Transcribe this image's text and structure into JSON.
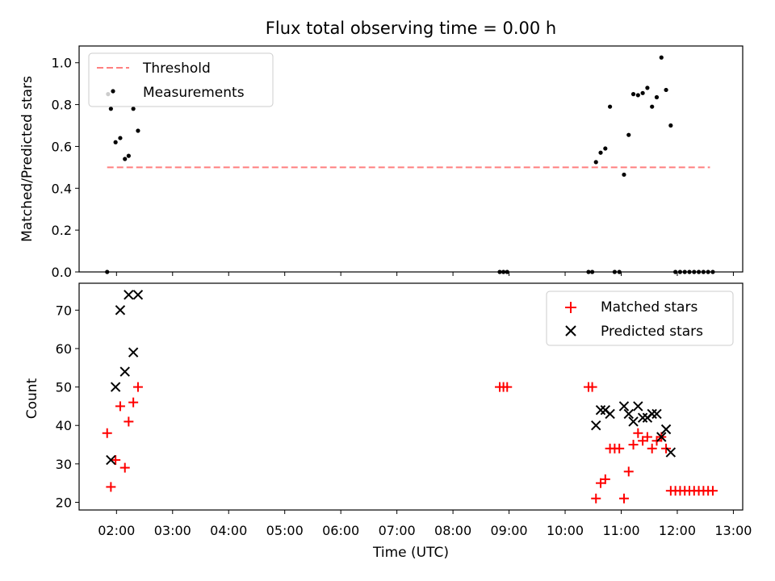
{
  "chart_data": [
    {
      "type": "scatter",
      "title": "Flux total observing time = 0.00 h",
      "xlabel": "",
      "ylabel": "Matched/Predicted stars",
      "xlim": [
        "01:20",
        "13:10"
      ],
      "ylim": [
        0,
        1.08
      ],
      "yticks": [
        0.0,
        0.2,
        0.4,
        0.6,
        0.8,
        1.0
      ],
      "ytick_labels": [
        "0.0",
        "0.2",
        "0.4",
        "0.6",
        "0.8",
        "1.0"
      ],
      "xticks": [
        "02:00",
        "03:00",
        "04:00",
        "05:00",
        "06:00",
        "07:00",
        "08:00",
        "09:00",
        "10:00",
        "11:00",
        "12:00",
        "13:00"
      ],
      "legend_position": "top-left",
      "series": [
        {
          "name": "Threshold",
          "kind": "line",
          "style": "dashed",
          "color": "#ff7f7f",
          "points": [
            {
              "x": "01:50",
              "y": 0.5
            },
            {
              "x": "12:35",
              "y": 0.5
            }
          ]
        },
        {
          "name": "Measurements",
          "kind": "scatter",
          "marker": "dot",
          "color": "#000000",
          "points": [
            {
              "x": "01:50",
              "y": 0.0
            },
            {
              "x": "01:51",
              "y": 0.85
            },
            {
              "x": "01:54",
              "y": 0.78
            },
            {
              "x": "01:59",
              "y": 0.62
            },
            {
              "x": "02:04",
              "y": 0.64
            },
            {
              "x": "02:09",
              "y": 0.54
            },
            {
              "x": "02:13",
              "y": 0.555
            },
            {
              "x": "02:18",
              "y": 0.78
            },
            {
              "x": "02:23",
              "y": 0.675
            },
            {
              "x": "08:50",
              "y": 0.0
            },
            {
              "x": "08:54",
              "y": 0.0
            },
            {
              "x": "08:58",
              "y": 0.0
            },
            {
              "x": "10:25",
              "y": 0.0
            },
            {
              "x": "10:29",
              "y": 0.0
            },
            {
              "x": "10:33",
              "y": 0.525
            },
            {
              "x": "10:38",
              "y": 0.57
            },
            {
              "x": "10:43",
              "y": 0.59
            },
            {
              "x": "10:48",
              "y": 0.79
            },
            {
              "x": "10:53",
              "y": 0.0
            },
            {
              "x": "10:58",
              "y": 0.0
            },
            {
              "x": "11:03",
              "y": 0.465
            },
            {
              "x": "11:08",
              "y": 0.655
            },
            {
              "x": "11:13",
              "y": 0.85
            },
            {
              "x": "11:18",
              "y": 0.845
            },
            {
              "x": "11:23",
              "y": 0.855
            },
            {
              "x": "11:28",
              "y": 0.88
            },
            {
              "x": "11:33",
              "y": 0.79
            },
            {
              "x": "11:38",
              "y": 0.835
            },
            {
              "x": "11:43",
              "y": 1.025
            },
            {
              "x": "11:48",
              "y": 0.87
            },
            {
              "x": "11:53",
              "y": 0.7
            },
            {
              "x": "11:58",
              "y": 0.0
            },
            {
              "x": "12:03",
              "y": 0.0
            },
            {
              "x": "12:08",
              "y": 0.0
            },
            {
              "x": "12:13",
              "y": 0.0
            },
            {
              "x": "12:18",
              "y": 0.0
            },
            {
              "x": "12:23",
              "y": 0.0
            },
            {
              "x": "12:28",
              "y": 0.0
            },
            {
              "x": "12:33",
              "y": 0.0
            },
            {
              "x": "12:38",
              "y": 0.0
            }
          ]
        }
      ]
    },
    {
      "type": "scatter",
      "title": "",
      "xlabel": "Time (UTC)",
      "ylabel": "Count",
      "xlim": [
        "01:20",
        "13:10"
      ],
      "ylim": [
        18,
        77
      ],
      "yticks": [
        20,
        30,
        40,
        50,
        60,
        70
      ],
      "ytick_labels": [
        "20",
        "30",
        "40",
        "50",
        "60",
        "70"
      ],
      "xticks": [
        "02:00",
        "03:00",
        "04:00",
        "05:00",
        "06:00",
        "07:00",
        "08:00",
        "09:00",
        "10:00",
        "11:00",
        "12:00",
        "13:00"
      ],
      "xtick_labels": [
        "02:00",
        "03:00",
        "04:00",
        "05:00",
        "06:00",
        "07:00",
        "08:00",
        "09:00",
        "10:00",
        "11:00",
        "12:00",
        "13:00"
      ],
      "legend_position": "top-right",
      "series": [
        {
          "name": "Matched stars",
          "kind": "scatter",
          "marker": "plus",
          "color": "#ff0000",
          "points": [
            {
              "x": "01:50",
              "y": 38
            },
            {
              "x": "01:54",
              "y": 24
            },
            {
              "x": "01:59",
              "y": 31
            },
            {
              "x": "02:04",
              "y": 45
            },
            {
              "x": "02:09",
              "y": 29
            },
            {
              "x": "02:13",
              "y": 41
            },
            {
              "x": "02:18",
              "y": 46
            },
            {
              "x": "02:23",
              "y": 50
            },
            {
              "x": "08:50",
              "y": 50
            },
            {
              "x": "08:54",
              "y": 50
            },
            {
              "x": "08:58",
              "y": 50
            },
            {
              "x": "10:25",
              "y": 50
            },
            {
              "x": "10:29",
              "y": 50
            },
            {
              "x": "10:33",
              "y": 21
            },
            {
              "x": "10:38",
              "y": 25
            },
            {
              "x": "10:43",
              "y": 26
            },
            {
              "x": "10:48",
              "y": 34
            },
            {
              "x": "10:53",
              "y": 34
            },
            {
              "x": "10:58",
              "y": 34
            },
            {
              "x": "11:03",
              "y": 21
            },
            {
              "x": "11:08",
              "y": 28
            },
            {
              "x": "11:13",
              "y": 35
            },
            {
              "x": "11:18",
              "y": 38
            },
            {
              "x": "11:23",
              "y": 36
            },
            {
              "x": "11:28",
              "y": 37
            },
            {
              "x": "11:33",
              "y": 34
            },
            {
              "x": "11:38",
              "y": 36
            },
            {
              "x": "11:43",
              "y": 37
            },
            {
              "x": "11:48",
              "y": 34
            },
            {
              "x": "11:53",
              "y": 23
            },
            {
              "x": "11:58",
              "y": 23
            },
            {
              "x": "12:03",
              "y": 23
            },
            {
              "x": "12:08",
              "y": 23
            },
            {
              "x": "12:13",
              "y": 23
            },
            {
              "x": "12:18",
              "y": 23
            },
            {
              "x": "12:23",
              "y": 23
            },
            {
              "x": "12:28",
              "y": 23
            },
            {
              "x": "12:33",
              "y": 23
            },
            {
              "x": "12:38",
              "y": 23
            }
          ]
        },
        {
          "name": "Predicted stars",
          "kind": "scatter",
          "marker": "x",
          "color": "#000000",
          "points": [
            {
              "x": "01:54",
              "y": 31
            },
            {
              "x": "01:59",
              "y": 50
            },
            {
              "x": "02:04",
              "y": 70
            },
            {
              "x": "02:09",
              "y": 54
            },
            {
              "x": "02:13",
              "y": 74
            },
            {
              "x": "02:18",
              "y": 59
            },
            {
              "x": "02:23",
              "y": 74
            },
            {
              "x": "10:33",
              "y": 40
            },
            {
              "x": "10:38",
              "y": 44
            },
            {
              "x": "10:43",
              "y": 44
            },
            {
              "x": "10:48",
              "y": 43
            },
            {
              "x": "11:03",
              "y": 45
            },
            {
              "x": "11:08",
              "y": 43
            },
            {
              "x": "11:13",
              "y": 41
            },
            {
              "x": "11:18",
              "y": 45
            },
            {
              "x": "11:23",
              "y": 42
            },
            {
              "x": "11:28",
              "y": 42
            },
            {
              "x": "11:33",
              "y": 43
            },
            {
              "x": "11:38",
              "y": 43
            },
            {
              "x": "11:43",
              "y": 37
            },
            {
              "x": "11:48",
              "y": 39
            },
            {
              "x": "11:53",
              "y": 33
            }
          ]
        }
      ]
    }
  ]
}
